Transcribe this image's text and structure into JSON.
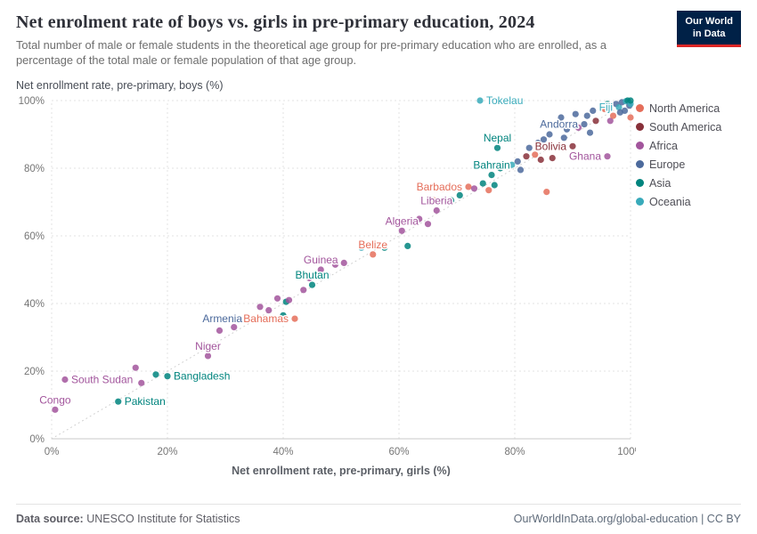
{
  "header": {
    "title": "Net enrolment rate of boys vs. girls in pre-primary education, 2024",
    "subtitle": "Total number of male or female students in the theoretical age group for pre-primary education who are enrolled, as a percentage of the total male or female population of that age group.",
    "logo": {
      "line1": "Our World",
      "line2": "in Data"
    }
  },
  "chart_data": {
    "type": "scatter",
    "title": "Net enrolment rate of boys vs. girls in pre-primary education, 2024",
    "xlabel": "Net enrollment rate, pre-primary, girls (%)",
    "ylabel": "Net enrollment rate, pre-primary, boys (%)",
    "xlim": [
      0,
      100
    ],
    "ylim": [
      0,
      100
    ],
    "ticks": [
      0,
      20,
      40,
      60,
      80,
      100
    ],
    "tick_suffix": "%",
    "grid": true,
    "diagonal_reference_line": true,
    "legend_position": "right",
    "continents": {
      "NA": {
        "label": "North America",
        "color": "#e56e5a"
      },
      "SA": {
        "label": "South America",
        "color": "#883039"
      },
      "AF": {
        "label": "Africa",
        "color": "#a2559c"
      },
      "EU": {
        "label": "Europe",
        "color": "#4c6a9c"
      },
      "AS": {
        "label": "Asia",
        "color": "#00847e"
      },
      "OC": {
        "label": "Oceania",
        "color": "#38aaba"
      }
    },
    "legend_order": [
      "NA",
      "SA",
      "AF",
      "EU",
      "AS",
      "OC"
    ],
    "points": [
      {
        "x": 0.6,
        "y": 8.6,
        "c": "AF",
        "label": "Congo",
        "pos": "above"
      },
      {
        "x": 2.3,
        "y": 17.5,
        "c": "AF",
        "label": "South Sudan",
        "pos": "right"
      },
      {
        "x": 11.5,
        "y": 11,
        "c": "AS",
        "label": "Pakistan",
        "pos": "right"
      },
      {
        "x": 14.5,
        "y": 21,
        "c": "AF"
      },
      {
        "x": 15.5,
        "y": 16.5,
        "c": "AF"
      },
      {
        "x": 18,
        "y": 19,
        "c": "AS"
      },
      {
        "x": 20,
        "y": 18.5,
        "c": "AS",
        "label": "Bangladesh",
        "pos": "right"
      },
      {
        "x": 27,
        "y": 24.5,
        "c": "AF",
        "label": "Niger",
        "pos": "above"
      },
      {
        "x": 29,
        "y": 32,
        "c": "AF"
      },
      {
        "x": 31.5,
        "y": 33,
        "c": "AF"
      },
      {
        "x": 34,
        "y": 35.5,
        "c": "EU",
        "label": "Armenia",
        "pos": "left"
      },
      {
        "x": 36,
        "y": 39,
        "c": "AF"
      },
      {
        "x": 37.5,
        "y": 38,
        "c": "AF"
      },
      {
        "x": 39,
        "y": 41.5,
        "c": "AF"
      },
      {
        "x": 40,
        "y": 36.5,
        "c": "AS"
      },
      {
        "x": 40.5,
        "y": 40.5,
        "c": "AS"
      },
      {
        "x": 41,
        "y": 41,
        "c": "AF"
      },
      {
        "x": 42,
        "y": 35.5,
        "c": "NA",
        "label": "Bahamas",
        "pos": "left"
      },
      {
        "x": 43.5,
        "y": 44,
        "c": "AF"
      },
      {
        "x": 44.5,
        "y": 47.5,
        "c": "AF"
      },
      {
        "x": 45,
        "y": 45.5,
        "c": "AS",
        "label": "Bhutan",
        "pos": "above"
      },
      {
        "x": 46.5,
        "y": 50,
        "c": "AF",
        "label": "Guinea",
        "pos": "above"
      },
      {
        "x": 47.5,
        "y": 48.5,
        "c": "AF"
      },
      {
        "x": 49,
        "y": 51.5,
        "c": "AF"
      },
      {
        "x": 50.5,
        "y": 52,
        "c": "AF"
      },
      {
        "x": 53.5,
        "y": 56.5,
        "c": "OC"
      },
      {
        "x": 55.5,
        "y": 54.5,
        "c": "NA",
        "label": "Belize",
        "pos": "above"
      },
      {
        "x": 57.5,
        "y": 56.5,
        "c": "AS"
      },
      {
        "x": 60.5,
        "y": 61.5,
        "c": "AF",
        "label": "Algeria",
        "pos": "above"
      },
      {
        "x": 61.5,
        "y": 57,
        "c": "AS"
      },
      {
        "x": 63.5,
        "y": 65,
        "c": "AF"
      },
      {
        "x": 65,
        "y": 63.5,
        "c": "AF"
      },
      {
        "x": 66,
        "y": 70.5,
        "c": "NA"
      },
      {
        "x": 66.5,
        "y": 67.5,
        "c": "AF",
        "label": "Liberia",
        "pos": "above"
      },
      {
        "x": 67.5,
        "y": 74,
        "c": "NA"
      },
      {
        "x": 69,
        "y": 70.5,
        "c": "AS"
      },
      {
        "x": 70.5,
        "y": 72,
        "c": "AS"
      },
      {
        "x": 72,
        "y": 74.5,
        "c": "NA",
        "label": "Barbados",
        "pos": "left"
      },
      {
        "x": 73,
        "y": 74,
        "c": "AF"
      },
      {
        "x": 74,
        "y": 100,
        "c": "OC",
        "label": "Tokelau",
        "pos": "right"
      },
      {
        "x": 74.5,
        "y": 75.5,
        "c": "AS"
      },
      {
        "x": 75.5,
        "y": 73.5,
        "c": "NA"
      },
      {
        "x": 76,
        "y": 78,
        "c": "AS",
        "label": "Bahrain",
        "pos": "above"
      },
      {
        "x": 76.5,
        "y": 75,
        "c": "AS"
      },
      {
        "x": 77,
        "y": 86,
        "c": "AS",
        "label": "Nepal",
        "pos": "above"
      },
      {
        "x": 77.5,
        "y": 80,
        "c": "AS"
      },
      {
        "x": 78.5,
        "y": 80.5,
        "c": "SA"
      },
      {
        "x": 79.5,
        "y": 81,
        "c": "OC"
      },
      {
        "x": 80.5,
        "y": 82,
        "c": "EU"
      },
      {
        "x": 81,
        "y": 79.5,
        "c": "EU"
      },
      {
        "x": 82,
        "y": 83.5,
        "c": "SA"
      },
      {
        "x": 82.5,
        "y": 86,
        "c": "EU"
      },
      {
        "x": 83.5,
        "y": 84,
        "c": "NA"
      },
      {
        "x": 84,
        "y": 87.5,
        "c": "EU"
      },
      {
        "x": 84.5,
        "y": 82.5,
        "c": "SA"
      },
      {
        "x": 85,
        "y": 88.5,
        "c": "EU"
      },
      {
        "x": 85.5,
        "y": 73,
        "c": "NA"
      },
      {
        "x": 86,
        "y": 90,
        "c": "EU"
      },
      {
        "x": 86.5,
        "y": 83,
        "c": "SA"
      },
      {
        "x": 87,
        "y": 92.5,
        "c": "EU"
      },
      {
        "x": 87.5,
        "y": 86.5,
        "c": "SA"
      },
      {
        "x": 88,
        "y": 95,
        "c": "EU"
      },
      {
        "x": 88.5,
        "y": 89,
        "c": "EU"
      },
      {
        "x": 89,
        "y": 91.5,
        "c": "EU"
      },
      {
        "x": 90,
        "y": 86.5,
        "c": "SA",
        "label": "Bolivia",
        "pos": "left"
      },
      {
        "x": 90.5,
        "y": 96,
        "c": "EU"
      },
      {
        "x": 91,
        "y": 92,
        "c": "AF"
      },
      {
        "x": 92,
        "y": 93,
        "c": "EU",
        "label": "Andorra",
        "pos": "left"
      },
      {
        "x": 92.5,
        "y": 95.5,
        "c": "EU"
      },
      {
        "x": 93,
        "y": 90.5,
        "c": "EU"
      },
      {
        "x": 93.5,
        "y": 97,
        "c": "EU"
      },
      {
        "x": 94,
        "y": 94,
        "c": "SA"
      },
      {
        "x": 96,
        "y": 83.5,
        "c": "AF",
        "label": "Ghana",
        "pos": "left"
      },
      {
        "x": 95.5,
        "y": 97.5,
        "c": "NA"
      },
      {
        "x": 96,
        "y": 99,
        "c": "AS"
      },
      {
        "x": 96.5,
        "y": 94,
        "c": "AF"
      },
      {
        "x": 97,
        "y": 95.5,
        "c": "NA"
      },
      {
        "x": 97.5,
        "y": 99,
        "c": "EU"
      },
      {
        "x": 98,
        "y": 98,
        "c": "OC",
        "label": "Fiji",
        "pos": "left"
      },
      {
        "x": 98.2,
        "y": 96.5,
        "c": "EU"
      },
      {
        "x": 98.5,
        "y": 99.5,
        "c": "EU"
      },
      {
        "x": 99,
        "y": 97,
        "c": "EU"
      },
      {
        "x": 99.2,
        "y": 99.8,
        "c": "OC"
      },
      {
        "x": 99.5,
        "y": 100,
        "c": "AS"
      },
      {
        "x": 99.8,
        "y": 98.5,
        "c": "EU"
      },
      {
        "x": 100,
        "y": 95,
        "c": "NA"
      },
      {
        "x": 100,
        "y": 99,
        "c": "OC"
      },
      {
        "x": 100,
        "y": 100,
        "c": "AS"
      }
    ]
  },
  "footer": {
    "source_prefix": "Data source:",
    "source": "UNESCO Institute for Statistics",
    "link": "OurWorldInData.org/global-education | CC BY"
  }
}
